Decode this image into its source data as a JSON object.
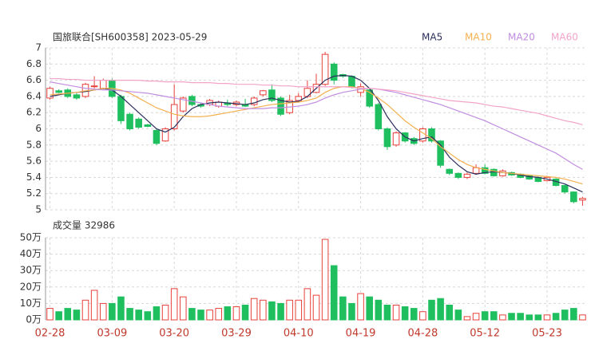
{
  "chart_data": [
    {
      "type": "candlestick",
      "title": "国旅联合[SH600358] 2023-05-29",
      "open": [
        6.38,
        6.47,
        6.48,
        6.42,
        6.4,
        6.52,
        6.5,
        6.6,
        6.4,
        6.18,
        6.12,
        6.05,
        5.98,
        5.85,
        6.0,
        6.22,
        6.4,
        6.3,
        6.3,
        6.28,
        6.32,
        6.3,
        6.3,
        6.3,
        6.42,
        6.48,
        6.38,
        6.2,
        6.35,
        6.4,
        6.45,
        6.55,
        6.8,
        6.67,
        6.65,
        6.45,
        6.48,
        6.3,
        6.0,
        5.8,
        5.95,
        5.88,
        5.85,
        6.0,
        5.85,
        5.5,
        5.45,
        5.4,
        5.45,
        5.52,
        5.5,
        5.42,
        5.46,
        5.44,
        5.42,
        5.4,
        5.36,
        5.38,
        5.3,
        5.22,
        5.12
      ],
      "high": [
        6.52,
        6.49,
        6.5,
        6.44,
        6.57,
        6.65,
        6.62,
        6.62,
        6.42,
        6.2,
        6.14,
        6.06,
        6.0,
        6.02,
        6.55,
        6.4,
        6.42,
        6.32,
        6.37,
        6.35,
        6.36,
        6.35,
        6.37,
        6.4,
        6.48,
        6.55,
        6.4,
        6.42,
        6.44,
        6.6,
        6.68,
        6.95,
        6.82,
        6.68,
        6.66,
        6.56,
        6.5,
        6.32,
        6.02,
        5.97,
        5.96,
        5.9,
        6.02,
        6.02,
        5.86,
        5.51,
        5.46,
        5.46,
        5.56,
        5.56,
        5.51,
        5.5,
        5.47,
        5.45,
        5.43,
        5.41,
        5.42,
        5.39,
        5.31,
        5.23,
        5.16
      ],
      "low": [
        6.36,
        6.44,
        6.38,
        6.36,
        6.38,
        6.5,
        6.48,
        6.38,
        6.06,
        5.98,
        6.0,
        6.02,
        5.8,
        5.84,
        5.98,
        6.2,
        6.28,
        6.26,
        6.28,
        6.26,
        6.28,
        6.28,
        6.27,
        6.28,
        6.4,
        6.33,
        6.16,
        6.18,
        6.33,
        6.38,
        6.44,
        6.53,
        6.55,
        6.63,
        6.5,
        6.4,
        6.26,
        5.98,
        5.74,
        5.78,
        5.83,
        5.8,
        5.83,
        5.83,
        5.52,
        5.43,
        5.38,
        5.38,
        5.44,
        5.44,
        5.41,
        5.41,
        5.42,
        5.39,
        5.37,
        5.34,
        5.35,
        5.29,
        5.2,
        5.08,
        5.05
      ],
      "close": [
        6.5,
        6.45,
        6.4,
        6.38,
        6.55,
        6.53,
        6.6,
        6.4,
        6.1,
        6.0,
        6.02,
        6.03,
        5.82,
        6.0,
        6.3,
        6.38,
        6.3,
        6.28,
        6.35,
        6.33,
        6.3,
        6.33,
        6.28,
        6.38,
        6.47,
        6.35,
        6.18,
        6.35,
        6.4,
        6.5,
        6.55,
        6.92,
        6.6,
        6.65,
        6.52,
        6.52,
        6.28,
        6.0,
        5.78,
        5.95,
        5.85,
        5.82,
        6.0,
        5.85,
        5.55,
        5.45,
        5.4,
        5.44,
        5.52,
        5.45,
        5.42,
        5.48,
        5.43,
        5.4,
        5.38,
        5.35,
        5.4,
        5.3,
        5.22,
        5.1,
        5.14
      ],
      "up_color": "#e8403a",
      "down_color": "#1fbf5f",
      "series": [
        {
          "name": "MA5",
          "color": "#2b2f5c",
          "values": [
            6.4,
            6.42,
            6.44,
            6.45,
            6.46,
            6.48,
            6.5,
            6.48,
            6.4,
            6.3,
            6.2,
            6.1,
            6.0,
            5.96,
            6.02,
            6.15,
            6.25,
            6.3,
            6.32,
            6.33,
            6.32,
            6.31,
            6.3,
            6.32,
            6.36,
            6.38,
            6.35,
            6.33,
            6.34,
            6.4,
            6.5,
            6.6,
            6.65,
            6.66,
            6.65,
            6.6,
            6.5,
            6.35,
            6.15,
            6.0,
            5.9,
            5.85,
            5.88,
            5.9,
            5.8,
            5.65,
            5.55,
            5.47,
            5.44,
            5.46,
            5.47,
            5.46,
            5.45,
            5.43,
            5.41,
            5.4,
            5.38,
            5.35,
            5.32,
            5.27,
            5.22
          ]
        },
        {
          "name": "MA10",
          "color": "#f4b04f",
          "values": [
            6.42,
            6.43,
            6.44,
            6.45,
            6.47,
            6.48,
            6.5,
            6.5,
            6.48,
            6.44,
            6.38,
            6.32,
            6.26,
            6.22,
            6.18,
            6.16,
            6.15,
            6.15,
            6.16,
            6.18,
            6.2,
            6.22,
            6.24,
            6.26,
            6.28,
            6.3,
            6.31,
            6.32,
            6.33,
            6.35,
            6.38,
            6.45,
            6.5,
            6.52,
            6.52,
            6.5,
            6.45,
            6.38,
            6.3,
            6.2,
            6.1,
            6.02,
            5.95,
            5.88,
            5.78,
            5.7,
            5.62,
            5.56,
            5.52,
            5.5,
            5.48,
            5.46,
            5.45,
            5.44,
            5.43,
            5.42,
            5.41,
            5.4,
            5.38,
            5.35,
            5.32
          ]
        },
        {
          "name": "MA20",
          "color": "#c18de0",
          "values": [
            6.58,
            6.56,
            6.54,
            6.52,
            6.5,
            6.49,
            6.48,
            6.48,
            6.47,
            6.46,
            6.45,
            6.44,
            6.42,
            6.4,
            6.38,
            6.36,
            6.34,
            6.32,
            6.3,
            6.28,
            6.27,
            6.26,
            6.25,
            6.25,
            6.25,
            6.26,
            6.26,
            6.27,
            6.28,
            6.3,
            6.33,
            6.38,
            6.42,
            6.45,
            6.47,
            6.49,
            6.5,
            6.49,
            6.47,
            6.45,
            6.42,
            6.39,
            6.36,
            6.33,
            6.3,
            6.26,
            6.22,
            6.18,
            6.14,
            6.1,
            6.05,
            6.0,
            5.95,
            5.9,
            5.85,
            5.8,
            5.75,
            5.7,
            5.63,
            5.56,
            5.5
          ]
        },
        {
          "name": "MA60",
          "color": "#f2a3c9",
          "values": [
            6.62,
            6.62,
            6.61,
            6.61,
            6.6,
            6.6,
            6.6,
            6.6,
            6.6,
            6.6,
            6.6,
            6.59,
            6.59,
            6.58,
            6.58,
            6.58,
            6.57,
            6.57,
            6.57,
            6.56,
            6.56,
            6.55,
            6.55,
            6.55,
            6.54,
            6.54,
            6.53,
            6.53,
            6.52,
            6.52,
            6.52,
            6.52,
            6.52,
            6.52,
            6.51,
            6.5,
            6.5,
            6.49,
            6.48,
            6.47,
            6.45,
            6.43,
            6.41,
            6.39,
            6.37,
            6.35,
            6.34,
            6.33,
            6.32,
            6.3,
            6.28,
            6.27,
            6.25,
            6.23,
            6.21,
            6.19,
            6.16,
            6.13,
            6.1,
            6.08,
            6.05
          ]
        }
      ],
      "ylim": [
        5,
        7
      ],
      "yticks": [
        5,
        5.2,
        5.4,
        5.6,
        5.8,
        6,
        6.2,
        6.4,
        6.6,
        6.8,
        7
      ],
      "grid": true
    },
    {
      "type": "bar",
      "title": "成交量 32986",
      "categories": [
        "02-28",
        null,
        null,
        null,
        null,
        null,
        null,
        "03-09",
        null,
        null,
        null,
        null,
        null,
        null,
        "03-20",
        null,
        null,
        null,
        null,
        null,
        null,
        "03-29",
        null,
        null,
        null,
        null,
        null,
        null,
        "04-10",
        null,
        null,
        null,
        null,
        null,
        null,
        "04-19",
        null,
        null,
        null,
        null,
        null,
        null,
        "04-28",
        null,
        null,
        null,
        null,
        null,
        null,
        "05-12",
        null,
        null,
        null,
        null,
        null,
        null,
        "05-23",
        null,
        null,
        null,
        null
      ],
      "values": [
        7,
        5,
        7,
        6,
        12,
        18,
        10,
        10,
        14,
        7,
        6,
        5,
        8,
        9,
        19,
        14,
        7,
        6,
        6,
        7,
        8,
        8,
        9,
        13,
        12,
        11,
        10,
        12,
        12,
        19,
        15,
        49,
        33,
        14,
        10,
        16,
        14,
        12,
        9,
        9,
        8,
        7,
        5,
        12,
        13,
        9,
        6,
        2,
        4,
        5,
        5,
        3,
        4,
        4,
        3,
        3,
        3,
        4,
        6,
        7,
        3
      ],
      "ylim": [
        0,
        50
      ],
      "yticks": [
        {
          "value": 0,
          "label": "0万"
        },
        {
          "value": 10,
          "label": "10万"
        },
        {
          "value": 20,
          "label": "20万"
        },
        {
          "value": 30,
          "label": "30万"
        },
        {
          "value": 40,
          "label": "40万"
        },
        {
          "value": 50,
          "label": "50万"
        }
      ],
      "grid": true
    }
  ]
}
